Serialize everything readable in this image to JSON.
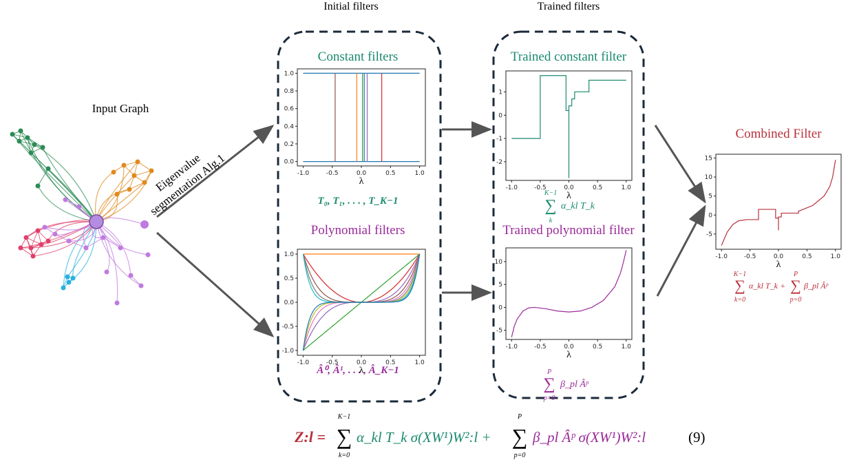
{
  "header": {
    "initial": "Initial filters",
    "trained": "Trained filters"
  },
  "input_graph": {
    "label": "Input Graph"
  },
  "arrow_label": {
    "line1": "Eigenvalue",
    "line2": "segmentation Alg.1"
  },
  "panels": [
    {
      "title": "Constant filters",
      "xlabel": "λ",
      "xticks": [
        "-1.0",
        "-0.5",
        "0.0",
        "0.5",
        "1.0"
      ],
      "yticks": [
        "1.0",
        "0.8",
        "0.6",
        "0.4",
        "0.2",
        "0.0"
      ],
      "formula": "T₀, T₁, . . . , T_K−1"
    },
    {
      "title": "Polynomial filters",
      "xlabel": "λ",
      "xticks": [
        "-1.0",
        "-0.5",
        "0.0",
        "0.5",
        "1.0"
      ],
      "yticks": [
        "1.0",
        "0.5",
        "0.0",
        "-0.5",
        "-1.0"
      ],
      "formula": "Â⁰, Â¹, . . . , Â_K−1"
    },
    {
      "title": "Trained constant filter",
      "xlabel": "λ",
      "xticks": [
        "-1.0",
        "-0.5",
        "0.0",
        "0.5",
        "1.0"
      ],
      "yticks": [
        "1",
        "0",
        "-1",
        "-2"
      ],
      "formula": {
        "top": "K−1",
        "sum": "∑",
        "bottom": "k",
        "term": "α_kl T_k"
      }
    },
    {
      "title": "Trained polynomial filter",
      "xlabel": "λ",
      "xticks": [
        "-1.0",
        "-0.5",
        "0.0",
        "0.5",
        "1.0"
      ],
      "yticks": [
        "10",
        "5",
        "0",
        "-5"
      ],
      "formula": {
        "top": "P",
        "sum": "∑",
        "bottom": "p=0",
        "term": "β_pl Âᵖ"
      }
    },
    {
      "title": "Combined Filter",
      "xlabel": "λ",
      "xticks": [
        "-1.0",
        "-0.5",
        "0.0",
        "0.5",
        "1.0"
      ],
      "yticks": [
        "15",
        "10",
        "5",
        "0",
        "-5"
      ],
      "formula": {
        "top1": "K−1",
        "bottom1": "k=0",
        "term1": "α_kl T_k +",
        "top2": "P",
        "bottom2": "p=0",
        "term2": "β_pl Âᵖ",
        "sum": "∑"
      }
    }
  ],
  "equation": {
    "lhs": "Z:l =",
    "top1": "K−1",
    "sum": "∑",
    "bottom1": "k=0",
    "term1": "α_kl T_k σ(XW¹)W²:l +",
    "top2": "P",
    "bottom2": "p=0",
    "term2": "β_pl Âᵖ σ(XW¹)W²:l",
    "number": "(9)"
  }
}
